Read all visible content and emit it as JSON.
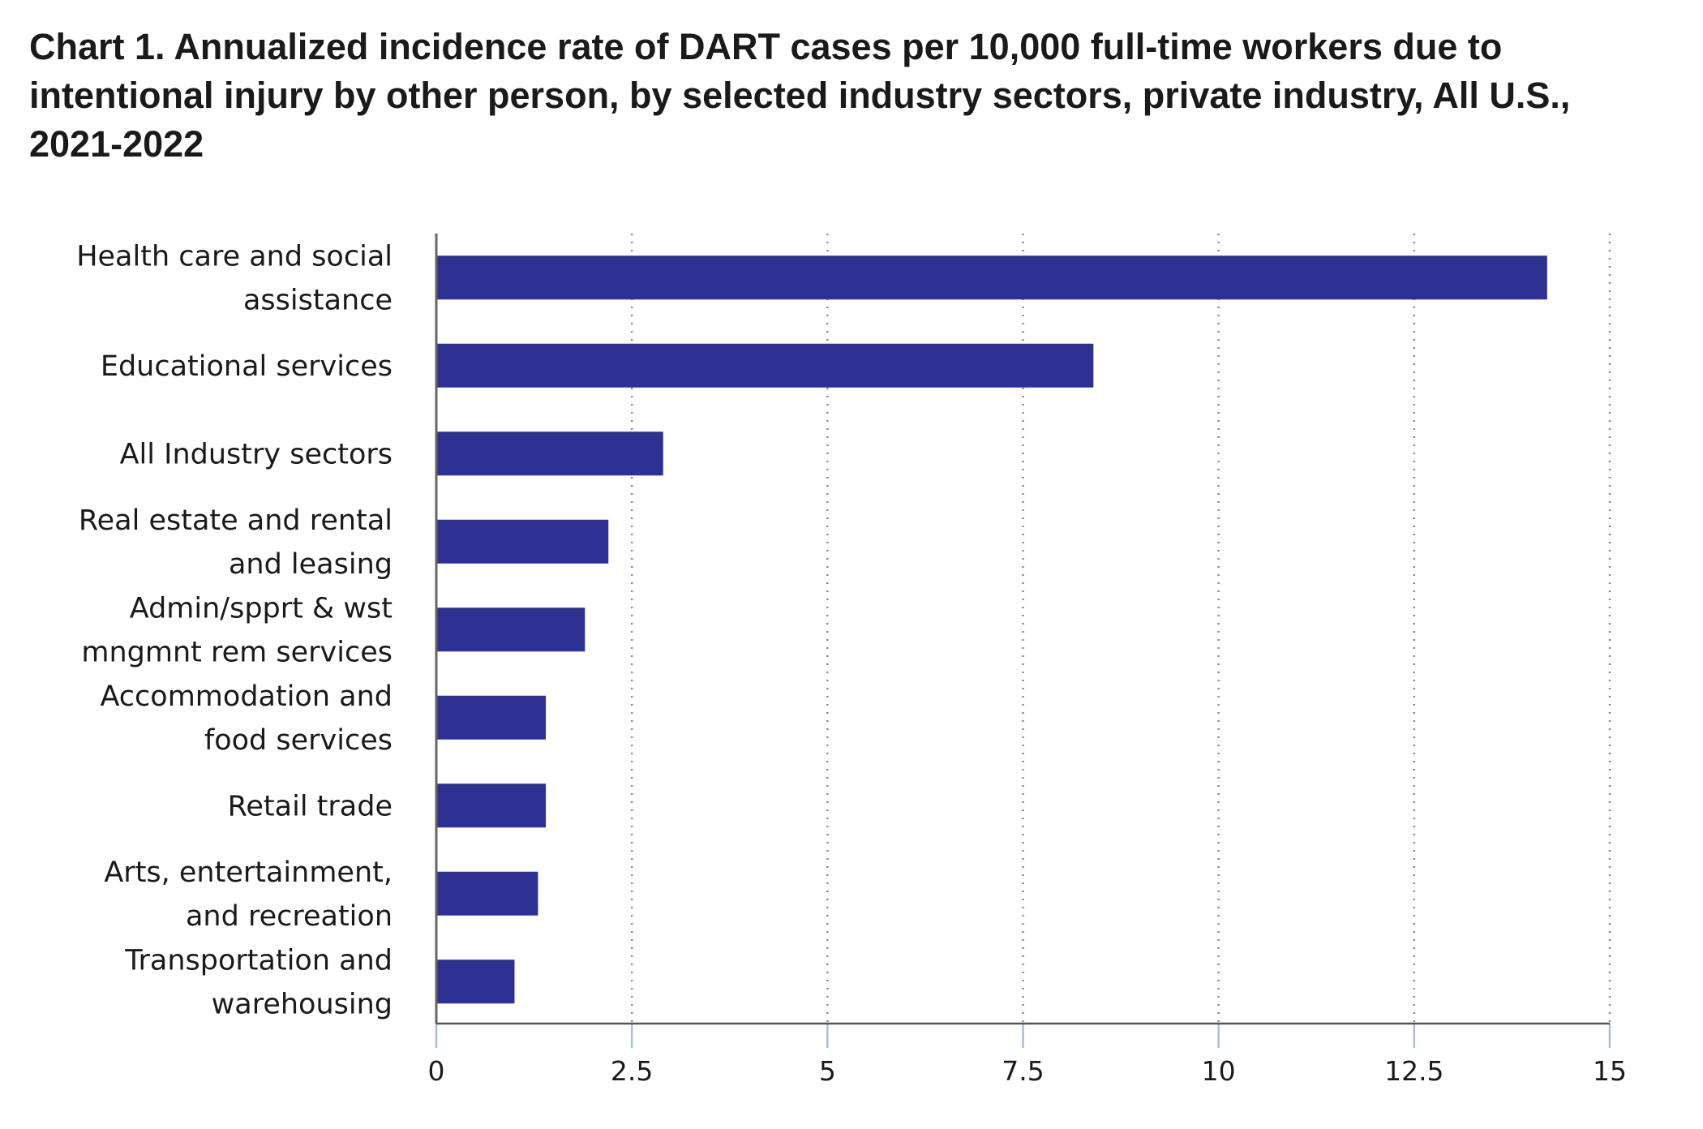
{
  "chart_data": {
    "type": "bar",
    "orientation": "horizontal",
    "title": "Chart 1. Annualized incidence rate of DART cases per 10,000 full-time workers due to intentional injury by other person, by selected industry sectors, private industry, All U.S., 2021-2022",
    "categories": [
      [
        "Health care and social",
        "assistance"
      ],
      [
        "Educational services"
      ],
      [
        "All Industry sectors"
      ],
      [
        "Real estate and rental",
        "and leasing"
      ],
      [
        "Admin/spprt & wst",
        "mngmnt rem services"
      ],
      [
        "Accommodation and",
        "food services"
      ],
      [
        "Retail trade"
      ],
      [
        "Arts, entertainment,",
        "and recreation"
      ],
      [
        "Transportation and",
        "warehousing"
      ]
    ],
    "values": [
      14.2,
      8.4,
      2.9,
      2.2,
      1.9,
      1.4,
      1.4,
      1.3,
      1.0
    ],
    "xlim": [
      0,
      15
    ],
    "xticks": [
      0,
      2.5,
      5,
      7.5,
      10,
      12.5,
      15
    ],
    "xtick_labels": [
      "0",
      "2.5",
      "5",
      "7.5",
      "10",
      "12.5",
      "15"
    ],
    "xlabel": "",
    "ylabel": "",
    "grid": "vertical dotted",
    "legend": "none",
    "bar_color": "#2e3192"
  }
}
